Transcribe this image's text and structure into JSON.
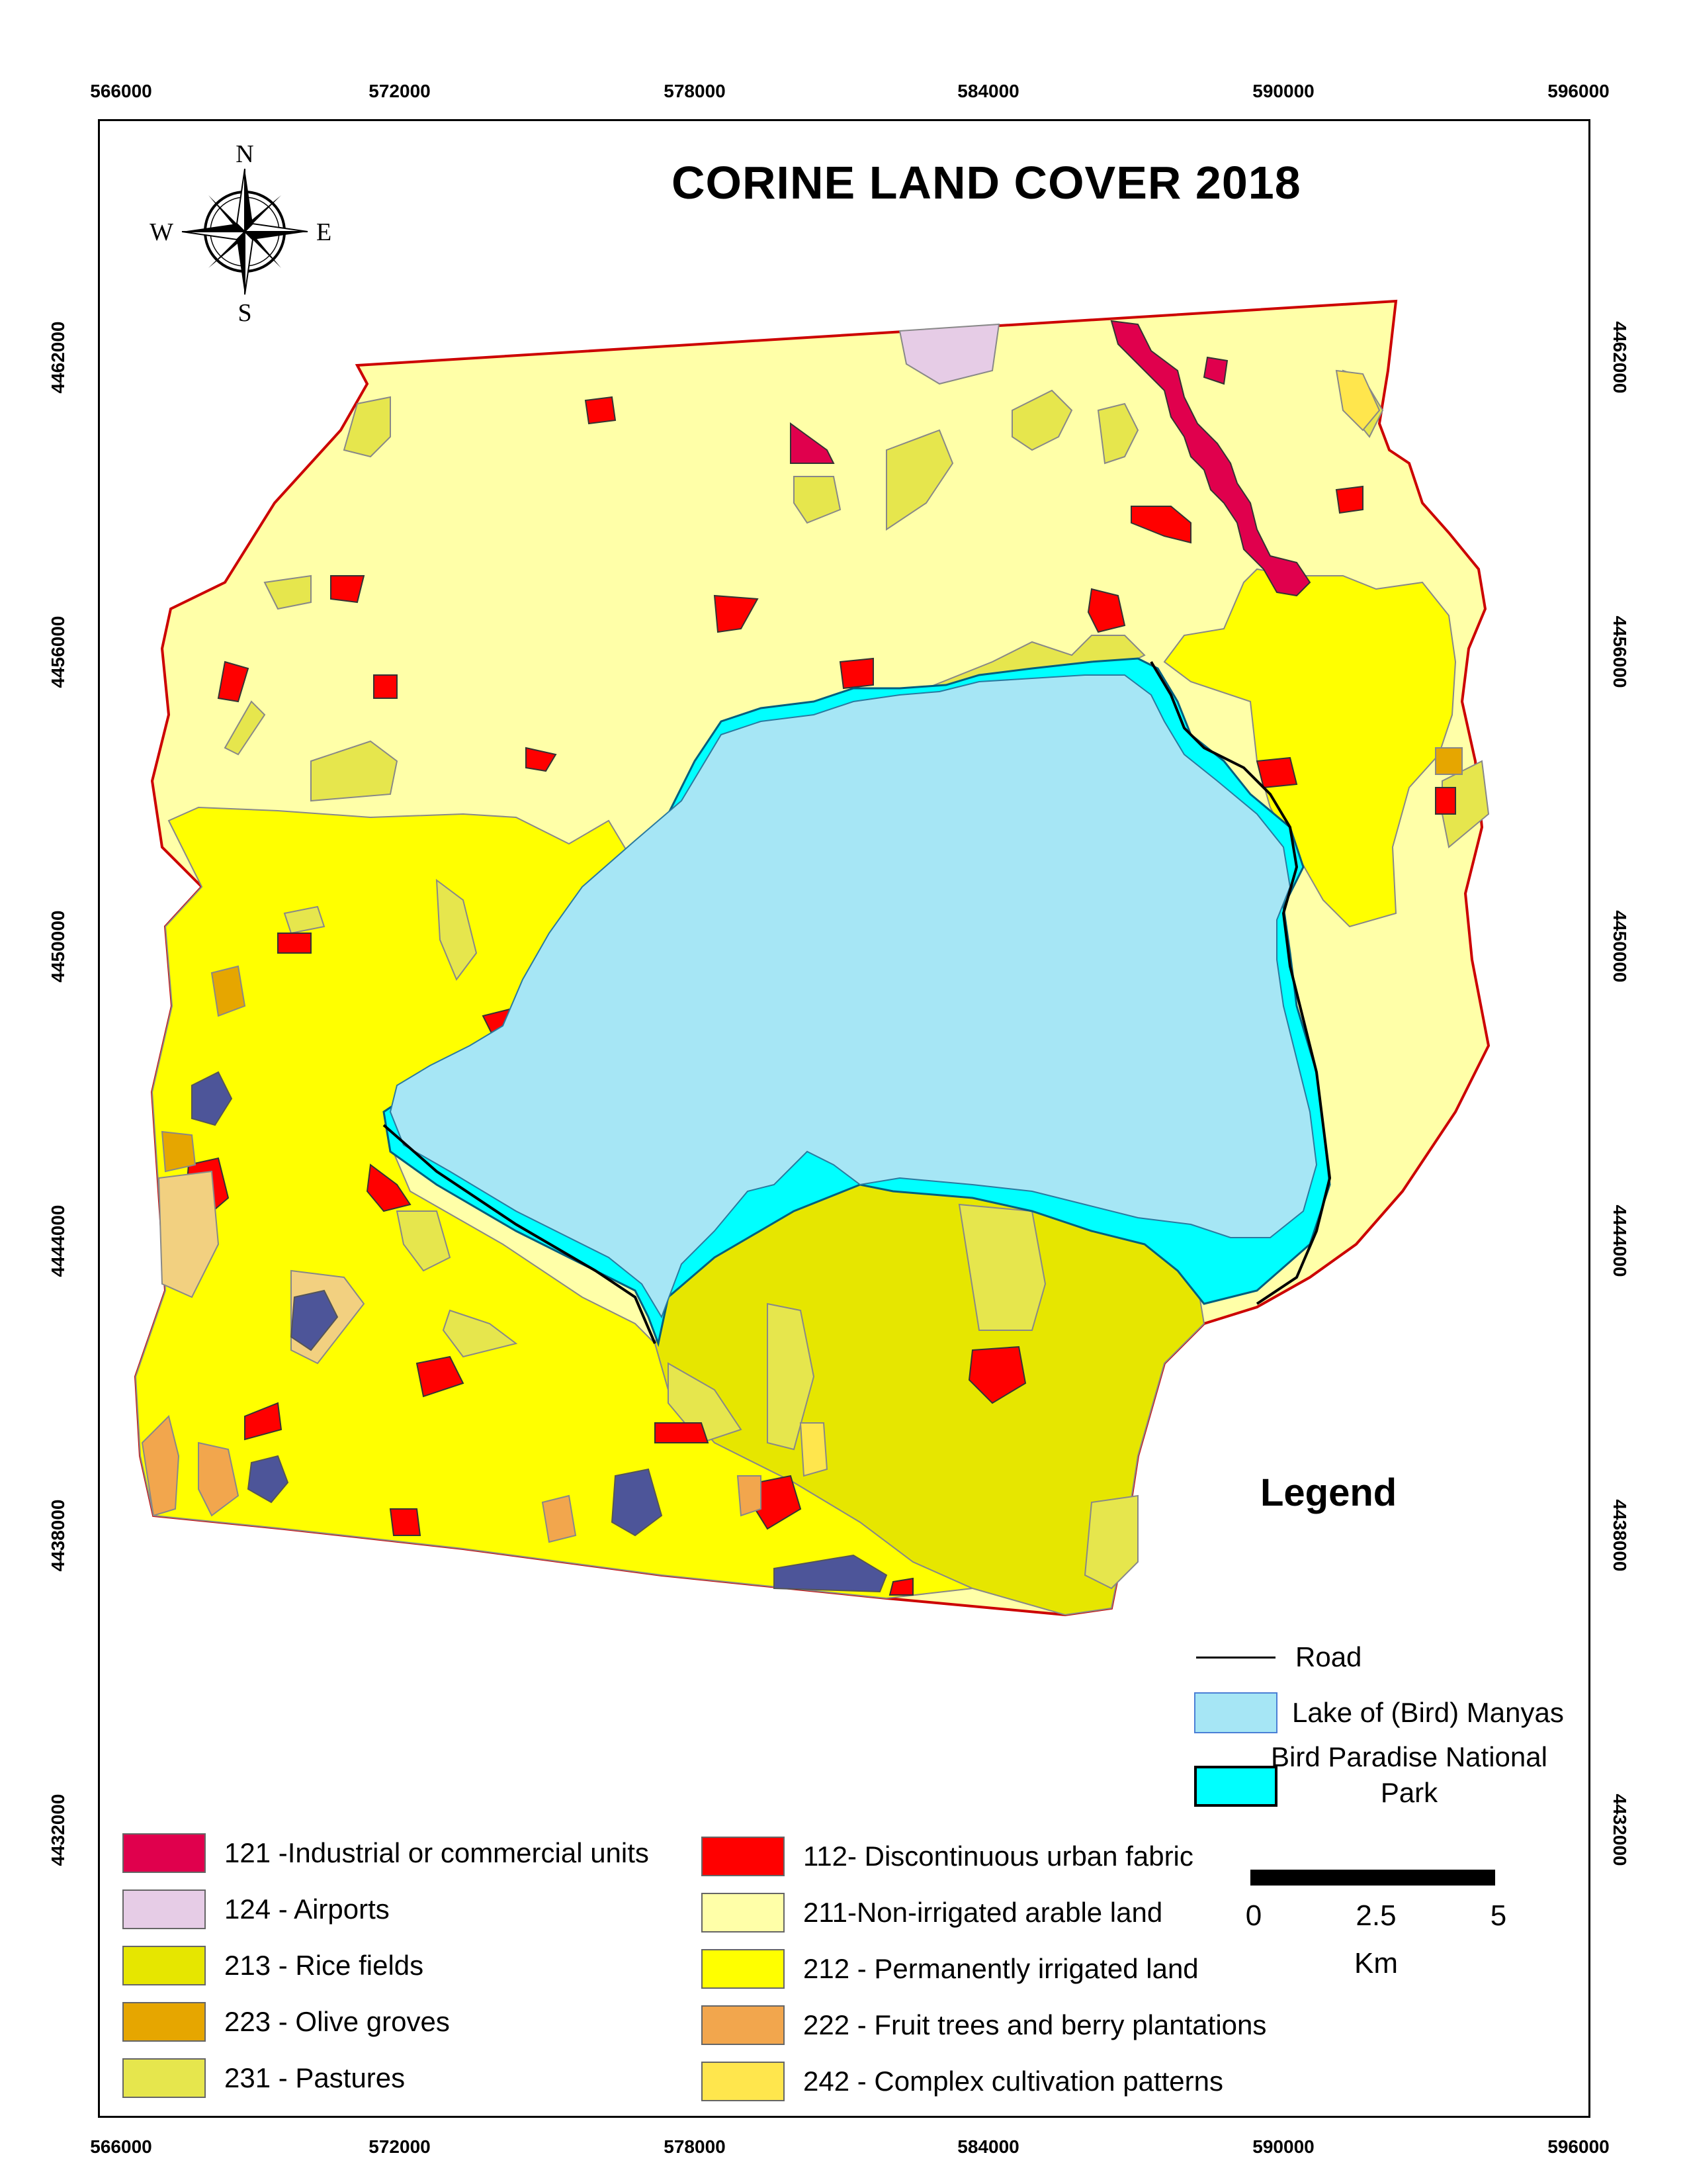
{
  "title": "CORINE LAND COVER 2018",
  "x_ticks": [
    "566000",
    "572000",
    "578000",
    "584000",
    "590000",
    "596000"
  ],
  "y_ticks": [
    "4462000",
    "4456000",
    "4450000",
    "4444000",
    "4438000",
    "4432000"
  ],
  "compass": {
    "n": "N",
    "s": "S",
    "e": "E",
    "w": "W"
  },
  "legend": {
    "title": "Legend",
    "road": "Road",
    "lake": "Lake of (Bird) Manyas",
    "park": "Bird Paradise National Park",
    "classes_left": [
      {
        "label": "121 -Industrial or commercial units",
        "color": "#e0004d"
      },
      {
        "label": "124 - Airports",
        "color": "#e6cce6"
      },
      {
        "label": "213 - Rice fields",
        "color": "#e6e600"
      },
      {
        "label": "223 - Olive groves",
        "color": "#e6a600"
      },
      {
        "label": "231 - Pastures",
        "color": "#e6e64d"
      }
    ],
    "classes_right": [
      {
        "label": "112- Discontinuous urban fabric",
        "color": "#ff0000"
      },
      {
        "label": "211-Non-irrigated arable land",
        "color": "#ffffa8"
      },
      {
        "label": "212 - Permanently irrigated land",
        "color": "#ffff00"
      },
      {
        "label": "222 - Fruit trees and berry plantations",
        "color": "#f2a64d"
      },
      {
        "label": "242 - Complex cultivation patterns",
        "color": "#ffe64d"
      }
    ]
  },
  "scale_bar": {
    "labels": [
      "0",
      "2.5",
      "5"
    ],
    "unit": "Km"
  },
  "colors": {
    "lake": "#a6e6f5",
    "park": "#00ffff",
    "boundary": "#cc0000",
    "sandy": "#f2d080",
    "dark_patch": "#4d5599"
  }
}
